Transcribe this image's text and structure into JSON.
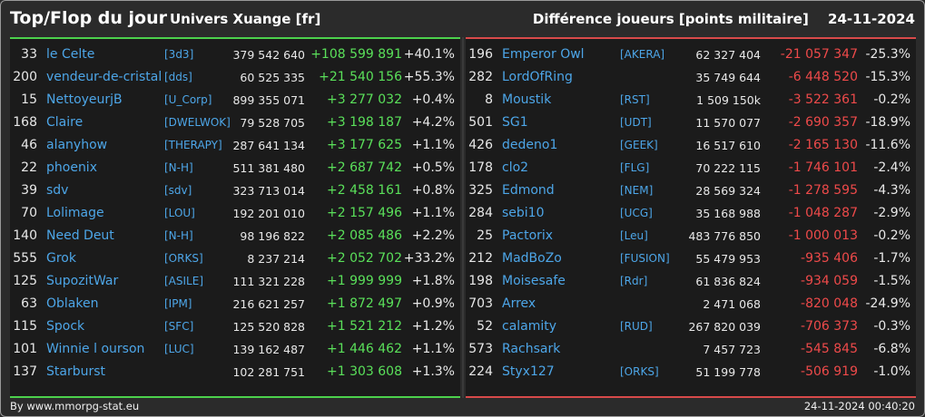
{
  "header": {
    "title": "Top/Flop du jour",
    "subtitle": "Univers Xuange [fr]",
    "right_label": "Différence joueurs [points militaire]",
    "date": "24-11-2024"
  },
  "colors": {
    "positive": "#5ae05a",
    "negative": "#ee4a4a",
    "name": "#4da6e8",
    "top_border": "#4cd14c",
    "flop_border": "#d84a4a"
  },
  "top": [
    {
      "rank": "33",
      "name": "le Celte",
      "alliance": "[3d3]",
      "points": "379 542 640",
      "diff": "+108 599 891",
      "pct": "+40.1%"
    },
    {
      "rank": "200",
      "name": "vendeur-de-cristal",
      "alliance": "[dds]",
      "points": "60 525 335",
      "diff": "+21 540 156",
      "pct": "+55.3%"
    },
    {
      "rank": "15",
      "name": "NettoyeurjB",
      "alliance": "[U_Corp]",
      "points": "899 355 071",
      "diff": "+3 277 032",
      "pct": "+0.4%"
    },
    {
      "rank": "168",
      "name": "Claire",
      "alliance": "[DWELWOK]",
      "points": "79 528 705",
      "diff": "+3 198 187",
      "pct": "+4.2%"
    },
    {
      "rank": "46",
      "name": "alanyhow",
      "alliance": "[THERAPY]",
      "points": "287 641 134",
      "diff": "+3 177 625",
      "pct": "+1.1%"
    },
    {
      "rank": "22",
      "name": "phoenix",
      "alliance": "[N-H]",
      "points": "511 381 480",
      "diff": "+2 687 742",
      "pct": "+0.5%"
    },
    {
      "rank": "39",
      "name": "sdv",
      "alliance": "[sdv]",
      "points": "323 713 014",
      "diff": "+2 458 161",
      "pct": "+0.8%"
    },
    {
      "rank": "70",
      "name": "Lolimage",
      "alliance": "[LOU]",
      "points": "192 201 010",
      "diff": "+2 157 496",
      "pct": "+1.1%"
    },
    {
      "rank": "140",
      "name": "Need Deut",
      "alliance": "[N-H]",
      "points": "98 196 822",
      "diff": "+2 085 486",
      "pct": "+2.2%"
    },
    {
      "rank": "555",
      "name": "Grok",
      "alliance": "[ORKS]",
      "points": "8 237 214",
      "diff": "+2 052 702",
      "pct": "+33.2%"
    },
    {
      "rank": "125",
      "name": "SupozitWar",
      "alliance": "[ASILE]",
      "points": "111 321 228",
      "diff": "+1 999 999",
      "pct": "+1.8%"
    },
    {
      "rank": "63",
      "name": "Oblaken",
      "alliance": "[IPM]",
      "points": "216 621 257",
      "diff": "+1 872 497",
      "pct": "+0.9%"
    },
    {
      "rank": "115",
      "name": "Spock",
      "alliance": "[SFC]",
      "points": "125 520 828",
      "diff": "+1 521 212",
      "pct": "+1.2%"
    },
    {
      "rank": "101",
      "name": "Winnie l ourson",
      "alliance": "[LUC]",
      "points": "139 162 487",
      "diff": "+1 446 462",
      "pct": "+1.1%"
    },
    {
      "rank": "137",
      "name": "Starburst",
      "alliance": "",
      "points": "102 281 751",
      "diff": "+1 303 608",
      "pct": "+1.3%"
    }
  ],
  "flop": [
    {
      "rank": "196",
      "name": "Emperor Owl",
      "alliance": "[AKERA]",
      "points": "62 327 404",
      "diff": "-21 057 347",
      "pct": "-25.3%"
    },
    {
      "rank": "282",
      "name": "LordOfRing",
      "alliance": "",
      "points": "35 749 644",
      "diff": "-6 448 520",
      "pct": "-15.3%"
    },
    {
      "rank": "8",
      "name": "Moustik",
      "alliance": "[RST]",
      "points": "1 509 150k",
      "diff": "-3 522 361",
      "pct": "-0.2%"
    },
    {
      "rank": "501",
      "name": "SG1",
      "alliance": "[UDT]",
      "points": "11 570 077",
      "diff": "-2 690 357",
      "pct": "-18.9%"
    },
    {
      "rank": "426",
      "name": "dedeno1",
      "alliance": "[GEEK]",
      "points": "16 517 610",
      "diff": "-2 165 130",
      "pct": "-11.6%"
    },
    {
      "rank": "178",
      "name": "clo2",
      "alliance": "[FLG]",
      "points": "70 222 115",
      "diff": "-1 746 101",
      "pct": "-2.4%"
    },
    {
      "rank": "325",
      "name": "Edmond",
      "alliance": "[NEM]",
      "points": "28 569 324",
      "diff": "-1 278 595",
      "pct": "-4.3%"
    },
    {
      "rank": "284",
      "name": "sebi10",
      "alliance": "[UCG]",
      "points": "35 168 988",
      "diff": "-1 048 287",
      "pct": "-2.9%"
    },
    {
      "rank": "25",
      "name": "Pactorix",
      "alliance": "[Leu]",
      "points": "483 776 850",
      "diff": "-1 000 013",
      "pct": "-0.2%"
    },
    {
      "rank": "212",
      "name": "MadBoZo",
      "alliance": "[FUSION]",
      "points": "55 479 953",
      "diff": "-935 406",
      "pct": "-1.7%"
    },
    {
      "rank": "198",
      "name": "Moisesafe",
      "alliance": "[Rdr]",
      "points": "61 836 824",
      "diff": "-934 059",
      "pct": "-1.5%"
    },
    {
      "rank": "703",
      "name": "Arrex",
      "alliance": "",
      "points": "2 471 068",
      "diff": "-820 048",
      "pct": "-24.9%"
    },
    {
      "rank": "52",
      "name": "calamity",
      "alliance": "[RUD]",
      "points": "267 820 039",
      "diff": "-706 373",
      "pct": "-0.3%"
    },
    {
      "rank": "573",
      "name": "Rachsark",
      "alliance": "",
      "points": "7 457 723",
      "diff": "-545 845",
      "pct": "-6.8%"
    },
    {
      "rank": "224",
      "name": "Styx127",
      "alliance": "[ORKS]",
      "points": "51 199 778",
      "diff": "-506 919",
      "pct": "-1.0%"
    }
  ],
  "footer": {
    "credit": "By www.mmorpg-stat.eu",
    "timestamp": "24-11-2024 00:40:20"
  }
}
